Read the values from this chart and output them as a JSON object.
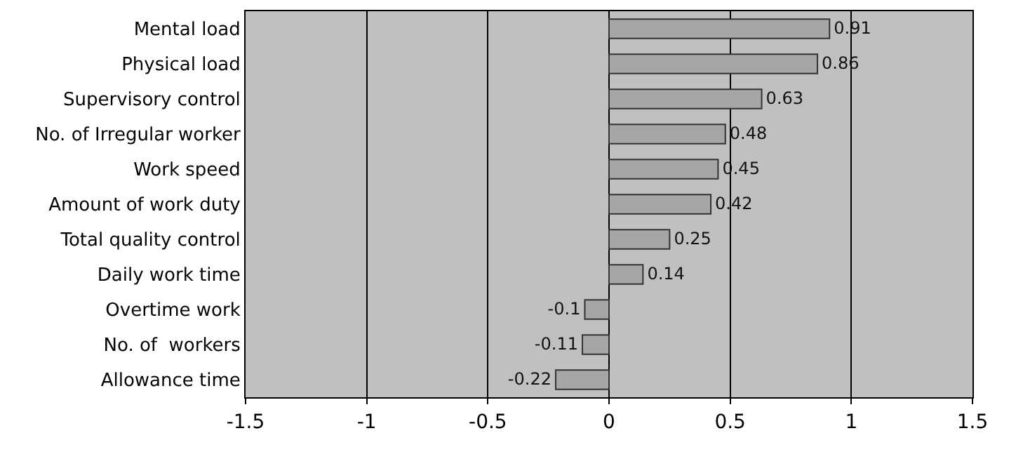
{
  "chart_data": {
    "type": "bar",
    "orientation": "horizontal",
    "categories": [
      "Mental load",
      "Physical load",
      "Supervisory control",
      "No. of Irregular worker",
      "Work speed",
      "Amount of work duty",
      "Total quality control",
      "Daily work time",
      "Overtime work",
      "No. of  workers",
      "Allowance time"
    ],
    "values": [
      0.91,
      0.86,
      0.63,
      0.48,
      0.45,
      0.42,
      0.25,
      0.14,
      -0.1,
      -0.11,
      -0.22
    ],
    "color": "#a6a6a6",
    "xlim": [
      -1.5,
      1.5
    ],
    "xticks": [
      -1.5,
      -1,
      -0.5,
      0,
      0.5,
      1,
      1.5
    ],
    "grid": "x",
    "data_labels": true
  }
}
